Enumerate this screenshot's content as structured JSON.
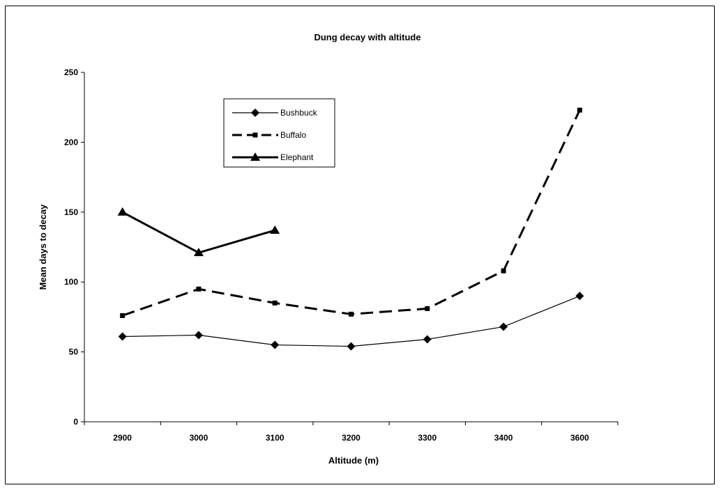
{
  "chart_data": {
    "type": "line",
    "title": "Dung decay with altitude",
    "xlabel": "Altitude (m)",
    "ylabel": "Mean days to decay",
    "categories": [
      "2900",
      "3000",
      "3100",
      "3200",
      "3300",
      "3400",
      "3600"
    ],
    "ylim": [
      0,
      250
    ],
    "yticks": [
      0,
      50,
      100,
      150,
      200,
      250
    ],
    "grid": false,
    "legend_position": "top-center",
    "series": [
      {
        "name": "Bushbuck",
        "values": [
          61,
          62,
          55,
          54,
          59,
          68,
          90
        ],
        "marker": "diamond",
        "line_style": "solid-thin",
        "color": "#000000"
      },
      {
        "name": "Buffalo",
        "values": [
          76,
          95,
          85,
          77,
          81,
          108,
          223
        ],
        "marker": "square",
        "line_style": "dashed-thick",
        "color": "#000000"
      },
      {
        "name": "Elephant",
        "values": [
          150,
          121,
          137,
          null,
          null,
          null,
          null
        ],
        "marker": "triangle",
        "line_style": "solid-thick",
        "color": "#000000"
      }
    ]
  }
}
